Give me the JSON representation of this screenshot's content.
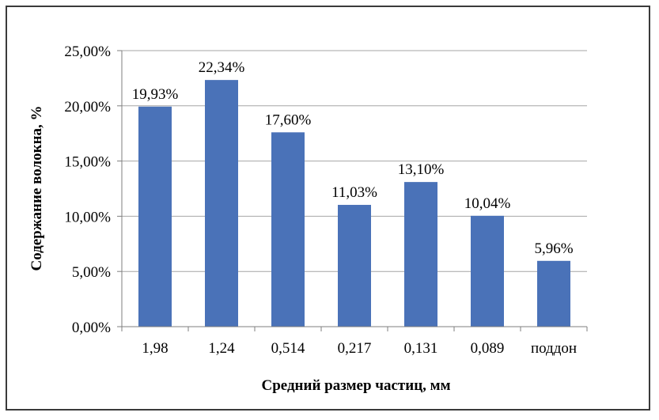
{
  "chart_data": {
    "type": "bar",
    "title": "",
    "xlabel": "Средний размер частиц, мм",
    "ylabel": "Содержание волокна, %",
    "categories": [
      "1,98",
      "1,24",
      "0,514",
      "0,217",
      "0,131",
      "0,089",
      "поддон"
    ],
    "values": [
      19.93,
      22.34,
      17.6,
      11.03,
      13.1,
      10.04,
      5.96
    ],
    "data_labels": [
      "19,93%",
      "22,34%",
      "17,60%",
      "11,03%",
      "13,10%",
      "10,04%",
      "5,96%"
    ],
    "ylim": [
      0,
      25
    ],
    "yticks": [
      0,
      5,
      10,
      15,
      20,
      25
    ],
    "ytick_labels": [
      "0,00%",
      "5,00%",
      "10,00%",
      "15,00%",
      "20,00%",
      "25,00%"
    ],
    "grid": true,
    "legend": "none",
    "bar_color": "#4a72b8",
    "grid_color": "#a6a6a6",
    "axis_color": "#7f7f7f"
  }
}
